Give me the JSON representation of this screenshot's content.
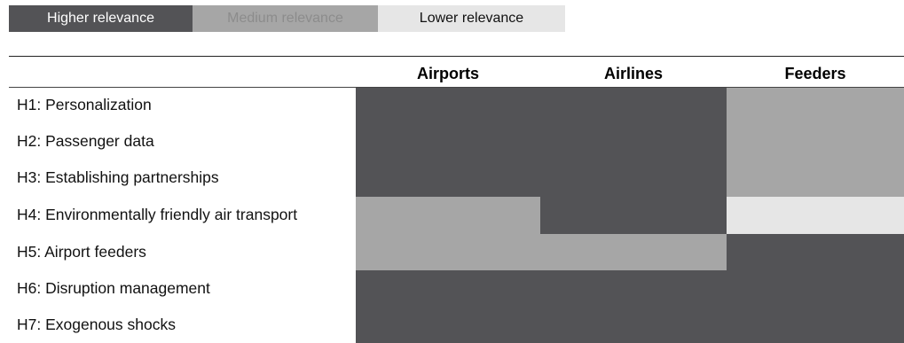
{
  "legend": {
    "high": "Higher relevance",
    "medium": "Medium relevance",
    "low": "Lower relevance"
  },
  "colors": {
    "high": "#535356",
    "medium": "#a6a6a6",
    "low": "#e6e6e6",
    "high_text": "#ffffff",
    "medium_text": "#8c8c8c",
    "low_text": "#111111"
  },
  "chart_data": {
    "type": "heatmap",
    "columns": [
      "Airports",
      "Airlines",
      "Feeders"
    ],
    "rows": [
      {
        "label": "H1: Personalization",
        "levels": [
          "high",
          "high",
          "medium"
        ]
      },
      {
        "label": "H2: Passenger data",
        "levels": [
          "high",
          "high",
          "medium"
        ]
      },
      {
        "label": "H3: Establishing partnerships",
        "levels": [
          "high",
          "high",
          "medium"
        ]
      },
      {
        "label": "H4: Environmentally friendly air transport",
        "levels": [
          "medium",
          "high",
          "low"
        ]
      },
      {
        "label": "H5: Airport feeders",
        "levels": [
          "medium",
          "medium",
          "high"
        ]
      },
      {
        "label": "H6: Disruption management",
        "levels": [
          "high",
          "high",
          "high"
        ]
      },
      {
        "label": "H7: Exogenous shocks",
        "levels": [
          "high",
          "high",
          "high"
        ]
      }
    ]
  }
}
